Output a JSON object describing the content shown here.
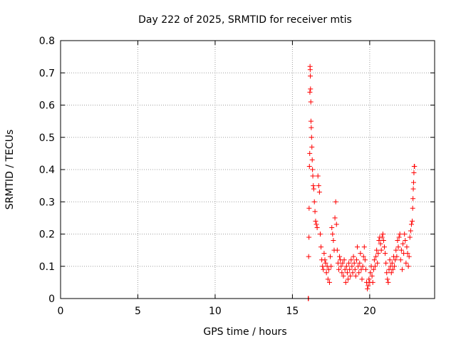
{
  "chart_data": {
    "type": "scatter",
    "title": "Day 222 of 2025, SRMTID for receiver mtis",
    "xlabel": "GPS time / hours",
    "ylabel": "SRMTID / TECUs",
    "xlim": [
      0,
      24.2
    ],
    "ylim": [
      0,
      0.8
    ],
    "x_ticks": [
      0,
      5,
      10,
      15,
      20
    ],
    "x_tick_labels": [
      "0",
      "5",
      "10",
      "15",
      "20"
    ],
    "y_ticks": [
      0,
      0.1,
      0.2,
      0.3,
      0.4,
      0.5,
      0.6,
      0.7,
      0.8
    ],
    "y_tick_labels": [
      "0",
      "0.1",
      "0.2",
      "0.3",
      "0.4",
      "0.5",
      "0.6",
      "0.7",
      "0.8"
    ],
    "grid": true,
    "marker": "+",
    "series": [
      {
        "name": "SRMTID",
        "color": "#ff0000",
        "points": [
          [
            16.02,
            0.0
          ],
          [
            16.04,
            0.0
          ],
          [
            16.05,
            0.13
          ],
          [
            16.07,
            0.19
          ],
          [
            16.08,
            0.28
          ],
          [
            16.1,
            0.41
          ],
          [
            16.12,
            0.45
          ],
          [
            16.13,
            0.64
          ],
          [
            16.14,
            0.72
          ],
          [
            16.15,
            0.71
          ],
          [
            16.16,
            0.69
          ],
          [
            16.17,
            0.65
          ],
          [
            16.19,
            0.61
          ],
          [
            16.2,
            0.55
          ],
          [
            16.22,
            0.53
          ],
          [
            16.24,
            0.5
          ],
          [
            16.26,
            0.47
          ],
          [
            16.28,
            0.43
          ],
          [
            16.3,
            0.4
          ],
          [
            16.32,
            0.38
          ],
          [
            16.35,
            0.35
          ],
          [
            16.38,
            0.34
          ],
          [
            16.42,
            0.3
          ],
          [
            16.46,
            0.27
          ],
          [
            16.5,
            0.24
          ],
          [
            16.55,
            0.23
          ],
          [
            16.6,
            0.22
          ],
          [
            16.65,
            0.38
          ],
          [
            16.7,
            0.35
          ],
          [
            16.75,
            0.33
          ],
          [
            16.8,
            0.2
          ],
          [
            16.85,
            0.16
          ],
          [
            16.9,
            0.12
          ],
          [
            16.95,
            0.1
          ],
          [
            17.0,
            0.09
          ],
          [
            17.05,
            0.14
          ],
          [
            17.1,
            0.12
          ],
          [
            17.15,
            0.11
          ],
          [
            17.2,
            0.08
          ],
          [
            17.25,
            0.1
          ],
          [
            17.3,
            0.06
          ],
          [
            17.35,
            0.09
          ],
          [
            17.4,
            0.05
          ],
          [
            17.45,
            0.13
          ],
          [
            17.5,
            0.1
          ],
          [
            17.55,
            0.22
          ],
          [
            17.6,
            0.2
          ],
          [
            17.65,
            0.18
          ],
          [
            17.7,
            0.15
          ],
          [
            17.75,
            0.25
          ],
          [
            17.8,
            0.3
          ],
          [
            17.85,
            0.23
          ],
          [
            17.9,
            0.15
          ],
          [
            17.95,
            0.11
          ],
          [
            18.0,
            0.09
          ],
          [
            18.05,
            0.13
          ],
          [
            18.1,
            0.12
          ],
          [
            18.15,
            0.1
          ],
          [
            18.2,
            0.08
          ],
          [
            18.25,
            0.11
          ],
          [
            18.3,
            0.07
          ],
          [
            18.35,
            0.12
          ],
          [
            18.4,
            0.09
          ],
          [
            18.45,
            0.05
          ],
          [
            18.5,
            0.1
          ],
          [
            18.55,
            0.08
          ],
          [
            18.6,
            0.06
          ],
          [
            18.65,
            0.11
          ],
          [
            18.7,
            0.09
          ],
          [
            18.75,
            0.07
          ],
          [
            18.8,
            0.12
          ],
          [
            18.85,
            0.1
          ],
          [
            18.9,
            0.08
          ],
          [
            18.95,
            0.13
          ],
          [
            19.0,
            0.11
          ],
          [
            19.05,
            0.09
          ],
          [
            19.1,
            0.07
          ],
          [
            19.15,
            0.12
          ],
          [
            19.2,
            0.16
          ],
          [
            19.25,
            0.1
          ],
          [
            19.3,
            0.08
          ],
          [
            19.35,
            0.11
          ],
          [
            19.4,
            0.14
          ],
          [
            19.45,
            0.09
          ],
          [
            19.5,
            0.06
          ],
          [
            19.55,
            0.1
          ],
          [
            19.6,
            0.13
          ],
          [
            19.65,
            0.16
          ],
          [
            19.7,
            0.12
          ],
          [
            19.75,
            0.09
          ],
          [
            19.8,
            0.05
          ],
          [
            19.85,
            0.03
          ],
          [
            19.9,
            0.04
          ],
          [
            19.95,
            0.06
          ],
          [
            20.0,
            0.05
          ],
          [
            20.05,
            0.08
          ],
          [
            20.1,
            0.1
          ],
          [
            20.15,
            0.07
          ],
          [
            20.2,
            0.05
          ],
          [
            20.25,
            0.09
          ],
          [
            20.3,
            0.12
          ],
          [
            20.35,
            0.1
          ],
          [
            20.4,
            0.13
          ],
          [
            20.45,
            0.15
          ],
          [
            20.5,
            0.11
          ],
          [
            20.55,
            0.14
          ],
          [
            20.6,
            0.18
          ],
          [
            20.65,
            0.19
          ],
          [
            20.7,
            0.17
          ],
          [
            20.75,
            0.15
          ],
          [
            20.8,
            0.19
          ],
          [
            20.85,
            0.2
          ],
          [
            20.9,
            0.18
          ],
          [
            20.95,
            0.16
          ],
          [
            21.0,
            0.14
          ],
          [
            21.05,
            0.11
          ],
          [
            21.1,
            0.08
          ],
          [
            21.15,
            0.06
          ],
          [
            21.2,
            0.05
          ],
          [
            21.25,
            0.09
          ],
          [
            21.3,
            0.12
          ],
          [
            21.35,
            0.1
          ],
          [
            21.4,
            0.08
          ],
          [
            21.45,
            0.11
          ],
          [
            21.5,
            0.09
          ],
          [
            21.55,
            0.13
          ],
          [
            21.6,
            0.1
          ],
          [
            21.65,
            0.12
          ],
          [
            21.7,
            0.15
          ],
          [
            21.75,
            0.13
          ],
          [
            21.8,
            0.18
          ],
          [
            21.85,
            0.16
          ],
          [
            21.9,
            0.19
          ],
          [
            21.95,
            0.2
          ],
          [
            22.0,
            0.12
          ],
          [
            22.05,
            0.15
          ],
          [
            22.1,
            0.09
          ],
          [
            22.15,
            0.17
          ],
          [
            22.2,
            0.14
          ],
          [
            22.25,
            0.2
          ],
          [
            22.3,
            0.18
          ],
          [
            22.35,
            0.11
          ],
          [
            22.4,
            0.16
          ],
          [
            22.45,
            0.14
          ],
          [
            22.5,
            0.1
          ],
          [
            22.55,
            0.13
          ],
          [
            22.6,
            0.19
          ],
          [
            22.65,
            0.21
          ],
          [
            22.7,
            0.23
          ],
          [
            22.75,
            0.24
          ],
          [
            22.78,
            0.28
          ],
          [
            22.8,
            0.31
          ],
          [
            22.82,
            0.34
          ],
          [
            22.84,
            0.36
          ],
          [
            22.86,
            0.39
          ],
          [
            22.88,
            0.41
          ],
          [
            22.9,
            0.41
          ]
        ]
      }
    ]
  }
}
